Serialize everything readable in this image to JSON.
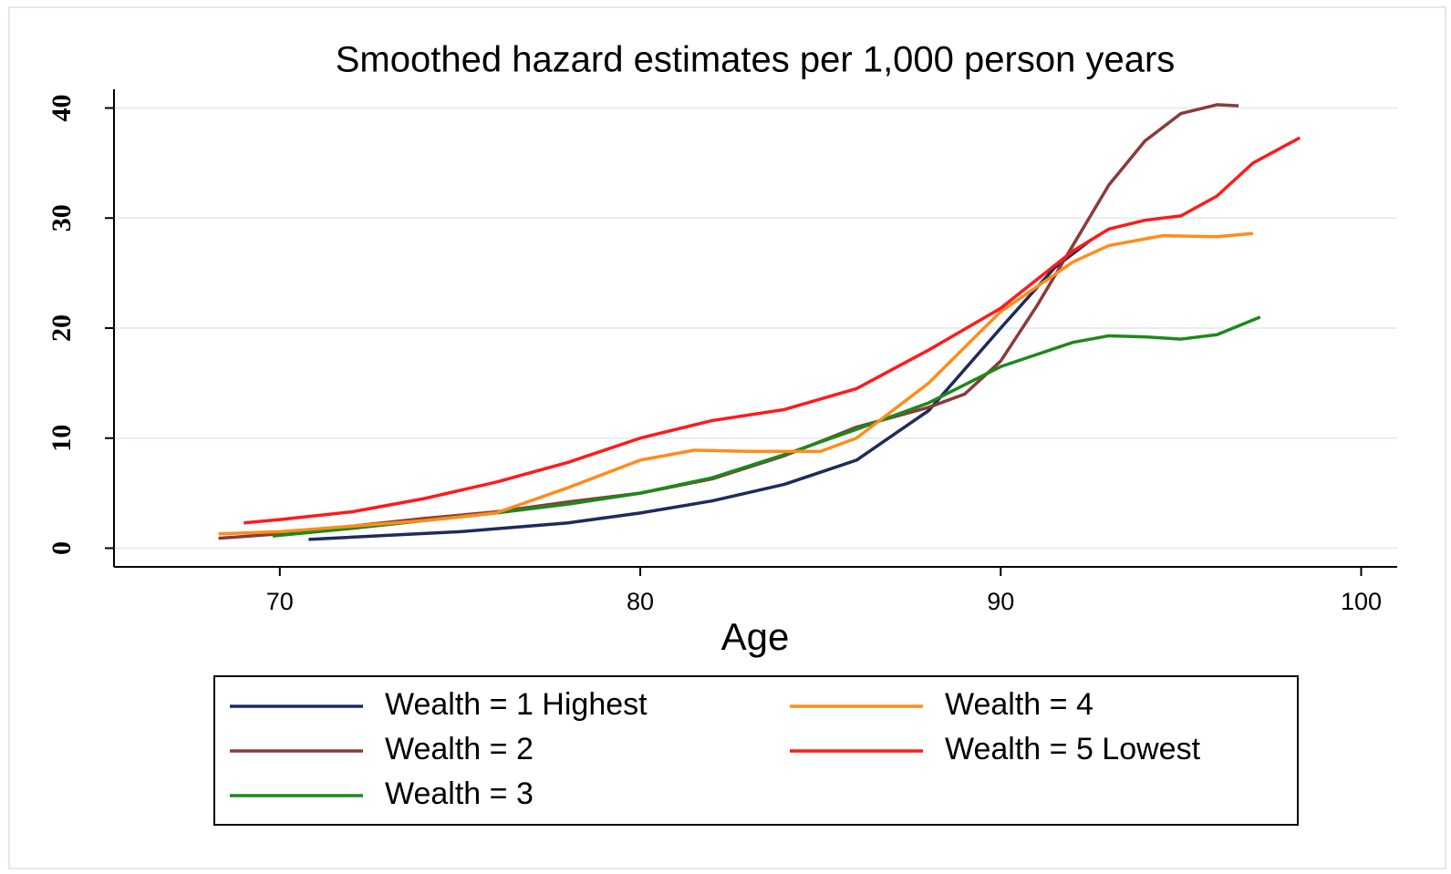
{
  "chart_data": {
    "type": "line",
    "title": "Smoothed hazard estimates per 1,000 person years",
    "x_label": "Age",
    "xlim": [
      65.4,
      101
    ],
    "xticks": [
      70,
      80,
      90,
      100
    ],
    "ylim": [
      -1.7,
      41.7
    ],
    "yticks": [
      0,
      10,
      20,
      30,
      40
    ],
    "grid": true,
    "legend": "bottom",
    "series": [
      {
        "name": "Wealth = 1 Highest",
        "color": "#1f2a5c",
        "x": [
          70.8,
          75,
          78,
          80,
          82,
          84,
          86,
          88,
          90,
          91.5,
          92.5
        ],
        "values": [
          0.8,
          1.5,
          2.3,
          3.2,
          4.3,
          5.8,
          8,
          12.5,
          20,
          25.5,
          28
        ]
      },
      {
        "name": "Wealth = 2",
        "color": "#8b3a3a",
        "x": [
          68.3,
          70,
          72,
          74,
          76,
          78,
          80,
          82,
          84,
          86,
          88,
          89,
          90,
          91,
          92,
          93,
          94,
          95,
          96,
          96.6
        ],
        "values": [
          0.9,
          1.3,
          2,
          2.7,
          3.3,
          4.2,
          5,
          6.3,
          8.4,
          11,
          12.8,
          14,
          17,
          22,
          27.5,
          33,
          37,
          39.5,
          40.3,
          40.2
        ]
      },
      {
        "name": "Wealth = 3",
        "color": "#1a8a1a",
        "x": [
          69.8,
          72,
          74,
          76,
          78,
          80,
          82,
          84,
          86,
          88,
          90,
          92,
          93,
          94,
          95,
          96,
          97.2
        ],
        "values": [
          1.1,
          1.8,
          2.5,
          3.2,
          4,
          5,
          6.4,
          8.5,
          10.8,
          13.2,
          16.5,
          18.7,
          19.3,
          19.2,
          19,
          19.4,
          21
        ]
      },
      {
        "name": "Wealth = 4",
        "color": "#ff8c1a",
        "x": [
          68.3,
          70,
          72,
          74,
          76,
          78,
          80,
          81.5,
          83,
          85,
          86,
          88,
          90,
          92,
          93,
          94.5,
          96,
          97
        ],
        "values": [
          1.3,
          1.5,
          2,
          2.5,
          3.2,
          5.5,
          8,
          8.9,
          8.8,
          8.8,
          10,
          15,
          21.5,
          26,
          27.5,
          28.4,
          28.3,
          28.6
        ]
      },
      {
        "name": "Wealth = 5 Lowest",
        "color": "#ff1a1a",
        "x": [
          69,
          70,
          72,
          74,
          76,
          78,
          80,
          82,
          84,
          86,
          88,
          90,
          92,
          93,
          94,
          95,
          96,
          97,
          98.3
        ],
        "values": [
          2.3,
          2.6,
          3.3,
          4.5,
          6,
          7.8,
          10,
          11.6,
          12.6,
          14.5,
          18,
          21.8,
          27,
          29,
          29.8,
          30.2,
          32,
          35,
          37.3
        ]
      }
    ]
  }
}
